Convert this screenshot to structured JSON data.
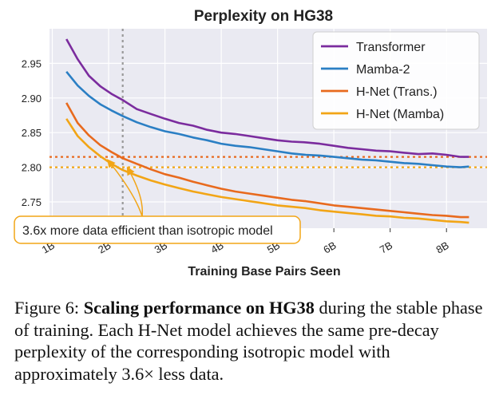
{
  "chart_data": {
    "type": "line",
    "title": "Perplexity on HG38",
    "xlabel": "Training Base Pairs Seen",
    "ylabel": "",
    "xlim": [
      0.95,
      8.72
    ],
    "ylim": [
      2.712,
      3.0
    ],
    "grid": true,
    "legend_position": "top-right",
    "x_ticks": [
      {
        "value": 1,
        "label": "1B"
      },
      {
        "value": 2,
        "label": "2B"
      },
      {
        "value": 3,
        "label": "3B"
      },
      {
        "value": 4,
        "label": "4B"
      },
      {
        "value": 5,
        "label": "5B"
      },
      {
        "value": 6,
        "label": "6B"
      },
      {
        "value": 7,
        "label": "7B"
      },
      {
        "value": 8,
        "label": "8B"
      }
    ],
    "y_ticks": [
      {
        "value": 2.75,
        "label": "2.75"
      },
      {
        "value": 2.8,
        "label": "2.80"
      },
      {
        "value": 2.85,
        "label": "2.85"
      },
      {
        "value": 2.9,
        "label": "2.90"
      },
      {
        "value": 2.95,
        "label": "2.95"
      }
    ],
    "series": [
      {
        "name": "Transformer",
        "color": "#7b2c9e",
        "x": [
          1.25,
          1.45,
          1.65,
          1.85,
          2.05,
          2.25,
          2.5,
          2.75,
          3.0,
          3.25,
          3.5,
          3.75,
          4.0,
          4.25,
          4.5,
          4.75,
          5.0,
          5.25,
          5.5,
          5.75,
          6.0,
          6.25,
          6.5,
          6.75,
          7.0,
          7.25,
          7.5,
          7.75,
          8.0,
          8.25,
          8.4
        ],
        "y": [
          2.985,
          2.956,
          2.932,
          2.917,
          2.906,
          2.897,
          2.884,
          2.877,
          2.87,
          2.864,
          2.86,
          2.854,
          2.85,
          2.848,
          2.845,
          2.842,
          2.839,
          2.837,
          2.836,
          2.834,
          2.831,
          2.828,
          2.826,
          2.824,
          2.823,
          2.821,
          2.819,
          2.82,
          2.818,
          2.815,
          2.815
        ]
      },
      {
        "name": "Mamba-2",
        "color": "#2b7fc4",
        "x": [
          1.25,
          1.45,
          1.65,
          1.85,
          2.05,
          2.25,
          2.5,
          2.75,
          3.0,
          3.25,
          3.5,
          3.75,
          4.0,
          4.25,
          4.5,
          4.75,
          5.0,
          5.25,
          5.5,
          5.75,
          6.0,
          6.25,
          6.5,
          6.75,
          7.0,
          7.25,
          7.5,
          7.75,
          8.0,
          8.25,
          8.4
        ],
        "y": [
          2.938,
          2.918,
          2.903,
          2.891,
          2.882,
          2.874,
          2.865,
          2.858,
          2.852,
          2.848,
          2.843,
          2.839,
          2.834,
          2.831,
          2.829,
          2.826,
          2.823,
          2.82,
          2.818,
          2.817,
          2.815,
          2.813,
          2.811,
          2.81,
          2.808,
          2.806,
          2.805,
          2.803,
          2.801,
          2.8,
          2.801
        ]
      },
      {
        "name": "H-Net (Trans.)",
        "color": "#e86a1e",
        "x": [
          1.25,
          1.45,
          1.65,
          1.85,
          2.05,
          2.25,
          2.5,
          2.75,
          3.0,
          3.25,
          3.5,
          3.75,
          4.0,
          4.25,
          4.5,
          4.75,
          5.0,
          5.25,
          5.5,
          5.75,
          6.0,
          6.25,
          6.5,
          6.75,
          7.0,
          7.25,
          7.5,
          7.75,
          8.0,
          8.25,
          8.4
        ],
        "y": [
          2.893,
          2.864,
          2.846,
          2.832,
          2.822,
          2.813,
          2.805,
          2.797,
          2.79,
          2.785,
          2.779,
          2.774,
          2.769,
          2.765,
          2.762,
          2.759,
          2.756,
          2.753,
          2.751,
          2.748,
          2.745,
          2.743,
          2.741,
          2.739,
          2.737,
          2.735,
          2.733,
          2.731,
          2.73,
          2.728,
          2.728
        ]
      },
      {
        "name": "H-Net (Mamba)",
        "color": "#f2a516",
        "x": [
          1.25,
          1.45,
          1.65,
          1.85,
          2.05,
          2.25,
          2.5,
          2.75,
          3.0,
          3.25,
          3.5,
          3.75,
          4.0,
          4.25,
          4.5,
          4.75,
          5.0,
          5.25,
          5.5,
          5.75,
          6.0,
          6.25,
          6.5,
          6.75,
          7.0,
          7.25,
          7.5,
          7.75,
          8.0,
          8.25,
          8.4
        ],
        "y": [
          2.87,
          2.845,
          2.829,
          2.816,
          2.805,
          2.796,
          2.788,
          2.781,
          2.775,
          2.77,
          2.765,
          2.761,
          2.757,
          2.754,
          2.751,
          2.748,
          2.745,
          2.743,
          2.741,
          2.738,
          2.736,
          2.734,
          2.732,
          2.73,
          2.729,
          2.727,
          2.726,
          2.724,
          2.722,
          2.721,
          2.72
        ]
      }
    ],
    "reference_lines": [
      {
        "orientation": "horizontal",
        "value": 2.815,
        "color": "#e86a1e"
      },
      {
        "orientation": "horizontal",
        "value": 2.8,
        "color": "#f2a516"
      },
      {
        "orientation": "vertical",
        "value": 2.25,
        "color": "#999999"
      }
    ],
    "annotation": {
      "text": "3.6x more data efficient than isotropic model",
      "arrow_to": [
        {
          "x": 1.98,
          "y": 2.811
        },
        {
          "x": 2.33,
          "y": 2.8
        }
      ]
    }
  },
  "caption": {
    "label": "Figure 6: ",
    "bold": "Scaling performance on HG38",
    "text": " during the stable phase of training. Each H-Net model achieves the same pre-decay perplexity of the corresponding isotropic model with approximately 3.6× less data."
  }
}
